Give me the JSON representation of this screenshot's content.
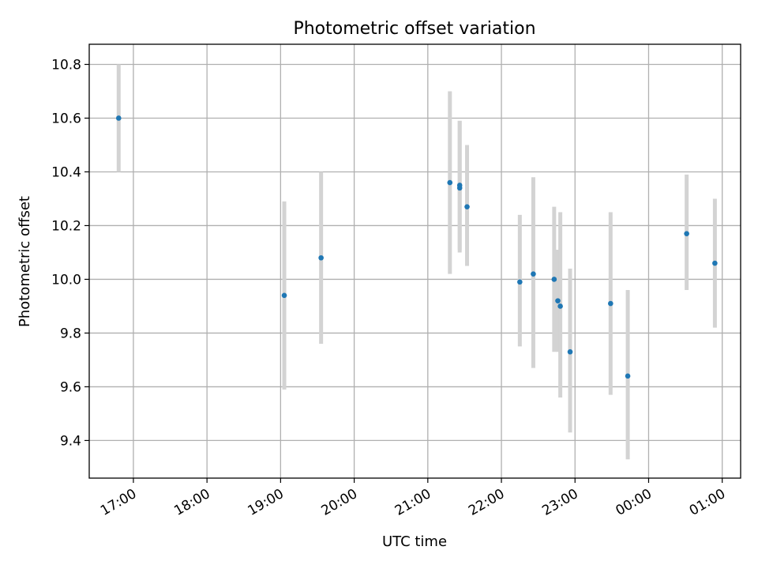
{
  "chart_data": {
    "type": "scatter",
    "title": "Photometric offset variation",
    "xlabel": "UTC time",
    "ylabel": "Photometric offset",
    "x_reference_date": "",
    "xlim": [
      "16:24",
      "01:15"
    ],
    "ylim": [
      9.26,
      10.875
    ],
    "x_ticks": [
      "17:00",
      "18:00",
      "19:00",
      "20:00",
      "21:00",
      "22:00",
      "23:00",
      "00:00",
      "01:00"
    ],
    "y_ticks": [
      "9.4",
      "9.6",
      "9.8",
      "10.0",
      "10.2",
      "10.4",
      "10.6",
      "10.8"
    ],
    "grid": true,
    "legend": "none",
    "colors": {
      "marker": "#1f77b4",
      "error_bar": "#d3d3d3"
    },
    "series": [
      {
        "points": [
          {
            "x": "16:48",
            "y": 10.6,
            "err_low": 10.4,
            "err_high": 10.8
          },
          {
            "x": "19:03",
            "y": 9.94,
            "err_low": 9.59,
            "err_high": 10.29
          },
          {
            "x": "19:33",
            "y": 10.08,
            "err_low": 9.76,
            "err_high": 10.4
          },
          {
            "x": "21:18",
            "y": 10.36,
            "err_low": 10.02,
            "err_high": 10.7
          },
          {
            "x": "21:26",
            "y": 10.34,
            "err_low": 10.1,
            "err_high": 10.59
          },
          {
            "x": "21:26",
            "y": 10.35,
            "err_low": 10.11,
            "err_high": 10.59
          },
          {
            "x": "21:32",
            "y": 10.27,
            "err_low": 10.05,
            "err_high": 10.5
          },
          {
            "x": "22:15",
            "y": 9.99,
            "err_low": 9.75,
            "err_high": 10.24
          },
          {
            "x": "22:26",
            "y": 10.02,
            "err_low": 9.67,
            "err_high": 10.38
          },
          {
            "x": "22:43",
            "y": 10.0,
            "err_low": 9.73,
            "err_high": 10.27
          },
          {
            "x": "22:46",
            "y": 9.92,
            "err_low": 9.73,
            "err_high": 10.11
          },
          {
            "x": "22:48",
            "y": 9.9,
            "err_low": 9.56,
            "err_high": 10.25
          },
          {
            "x": "22:56",
            "y": 9.73,
            "err_low": 9.43,
            "err_high": 10.04
          },
          {
            "x": "23:29",
            "y": 9.91,
            "err_low": 9.57,
            "err_high": 10.25
          },
          {
            "x": "23:43",
            "y": 9.64,
            "err_low": 9.33,
            "err_high": 9.96
          },
          {
            "x": "00:31",
            "y": 10.17,
            "err_low": 9.96,
            "err_high": 10.39
          },
          {
            "x": "00:54",
            "y": 10.06,
            "err_low": 9.82,
            "err_high": 10.3
          }
        ]
      }
    ]
  }
}
